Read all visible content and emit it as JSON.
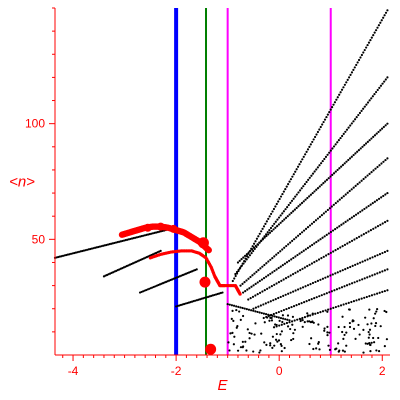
{
  "chart_data": {
    "type": "scatter",
    "title": "",
    "xlabel": "E",
    "ylabel": "<n>",
    "xlim": [
      -4.35,
      2.15
    ],
    "ylim": [
      0,
      150
    ],
    "grid": false,
    "legend": "none",
    "x_ticks": [
      -4,
      -2,
      0,
      2
    ],
    "x_tick_labels": [
      "-4",
      "-2",
      "0",
      "2"
    ],
    "y_ticks": [
      50,
      100
    ],
    "y_tick_labels": [
      "50",
      "100"
    ],
    "colors": {
      "axis": "#ff0000",
      "points": "#000000",
      "highlight": "#ff0000",
      "blue_line": "#0000ff",
      "green_line": "#007f00",
      "magenta_line": "#ff00ff"
    },
    "vertical_lines": [
      {
        "x": -2.0,
        "color": "#0000ff"
      },
      {
        "x": -1.42,
        "color": "#007f00"
      },
      {
        "x": -1.0,
        "color": "#ff00ff"
      },
      {
        "x": 1.0,
        "color": "#ff00ff"
      }
    ],
    "bands": [
      {
        "from": [
          -4.35,
          42
        ],
        "to": [
          -2.2,
          54
        ],
        "n": 70
      },
      {
        "from": [
          -3.4,
          34
        ],
        "to": [
          -2.3,
          45
        ],
        "n": 38
      },
      {
        "from": [
          -2.7,
          27
        ],
        "to": [
          -1.6,
          37
        ],
        "n": 38
      },
      {
        "from": [
          -2.0,
          21
        ],
        "to": [
          -1.1,
          27
        ],
        "n": 30
      },
      {
        "from": [
          -0.9,
          32
        ],
        "to": [
          2.1,
          149
        ],
        "n": 110
      },
      {
        "from": [
          -0.85,
          35
        ],
        "to": [
          2.1,
          120
        ],
        "n": 95
      },
      {
        "from": [
          -0.8,
          40
        ],
        "to": [
          2.1,
          100
        ],
        "n": 85
      },
      {
        "from": [
          -0.75,
          30
        ],
        "to": [
          2.1,
          85
        ],
        "n": 75
      },
      {
        "from": [
          -0.7,
          27
        ],
        "to": [
          2.1,
          70
        ],
        "n": 70
      },
      {
        "from": [
          -0.6,
          24
        ],
        "to": [
          2.1,
          58
        ],
        "n": 60
      },
      {
        "from": [
          -0.5,
          20
        ],
        "to": [
          2.1,
          45
        ],
        "n": 55
      },
      {
        "from": [
          -0.3,
          16
        ],
        "to": [
          2.1,
          37
        ],
        "n": 50
      },
      {
        "from": [
          -0.1,
          12
        ],
        "to": [
          2.1,
          28
        ],
        "n": 45
      },
      {
        "from": [
          -1.0,
          22
        ],
        "to": [
          0.2,
          15
        ],
        "n": 30
      }
    ],
    "red_arc": [
      [
        -3.05,
        52
      ],
      [
        -2.9,
        53
      ],
      [
        -2.75,
        54
      ],
      [
        -2.6,
        55
      ],
      [
        -2.45,
        55.5
      ],
      [
        -2.3,
        55.5
      ],
      [
        -2.15,
        55
      ],
      [
        -2.0,
        54
      ],
      [
        -1.85,
        53
      ],
      [
        -1.7,
        51
      ],
      [
        -1.55,
        49
      ],
      [
        -1.45,
        47
      ],
      [
        -1.35,
        45
      ]
    ],
    "red_arc_lower": [
      [
        -2.5,
        42
      ],
      [
        -2.3,
        43.5
      ],
      [
        -2.1,
        44.5
      ],
      [
        -1.9,
        45
      ],
      [
        -1.7,
        45
      ],
      [
        -1.55,
        44
      ],
      [
        -1.42,
        42
      ],
      [
        -1.32,
        38
      ],
      [
        -1.25,
        34
      ],
      [
        -1.2,
        32
      ],
      [
        -1.15,
        30
      ],
      [
        -1.05,
        30
      ],
      [
        -0.85,
        30
      ],
      [
        -0.8,
        28
      ],
      [
        -0.75,
        26
      ]
    ],
    "red_markers": [
      {
        "x": -1.47,
        "y": 48.5,
        "size": "large"
      },
      {
        "x": -1.44,
        "y": 31.5,
        "size": "large"
      },
      {
        "x": -1.33,
        "y": 2.5,
        "size": "large"
      },
      {
        "x": -2.55,
        "y": 55,
        "size": "medium"
      },
      {
        "x": -2.3,
        "y": 55.5,
        "size": "medium"
      },
      {
        "x": -2.05,
        "y": 54.5,
        "size": "medium"
      }
    ],
    "scatter_cloud": {
      "x_range": [
        -1.0,
        2.1
      ],
      "y_range": [
        1,
        20
      ],
      "n": 160
    }
  }
}
